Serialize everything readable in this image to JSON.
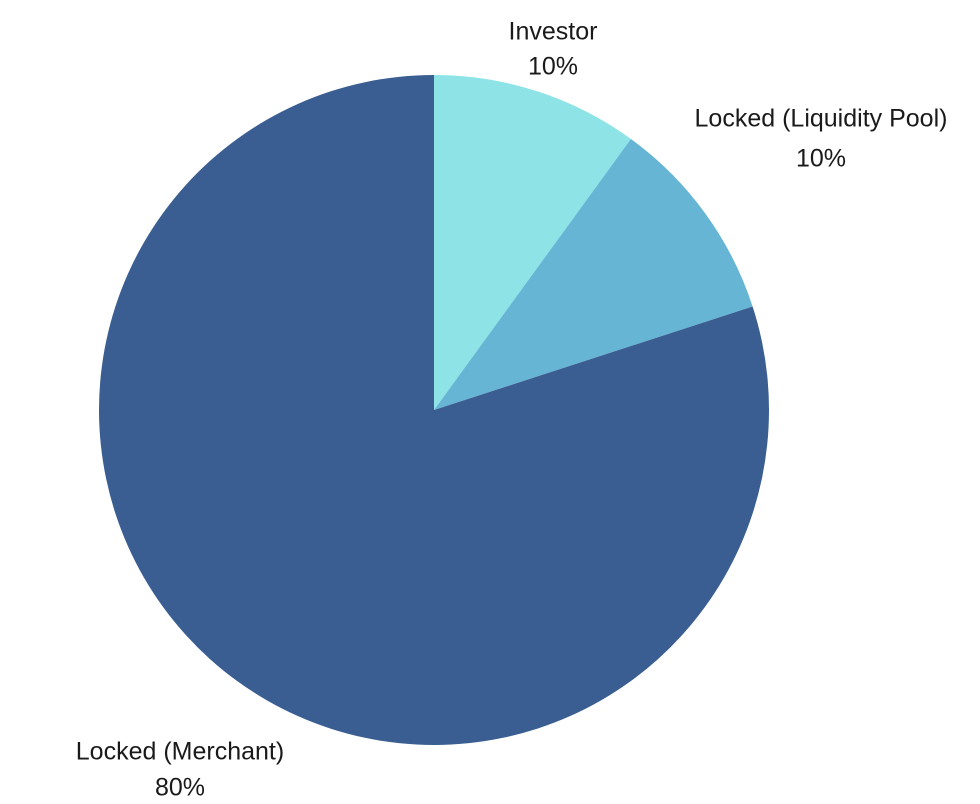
{
  "chart_data": {
    "type": "pie",
    "title": "",
    "start_angle_deg": 0,
    "direction": "clockwise",
    "slices": [
      {
        "label": "Investor",
        "value": 10,
        "display": "10%",
        "color": "#8de3e6"
      },
      {
        "label": "Locked (Liquidity Pool)",
        "value": 10,
        "display": "10%",
        "color": "#66b5d4"
      },
      {
        "label": "Locked (Merchant)",
        "value": 80,
        "display": "80%",
        "color": "#3b5e92"
      }
    ]
  }
}
